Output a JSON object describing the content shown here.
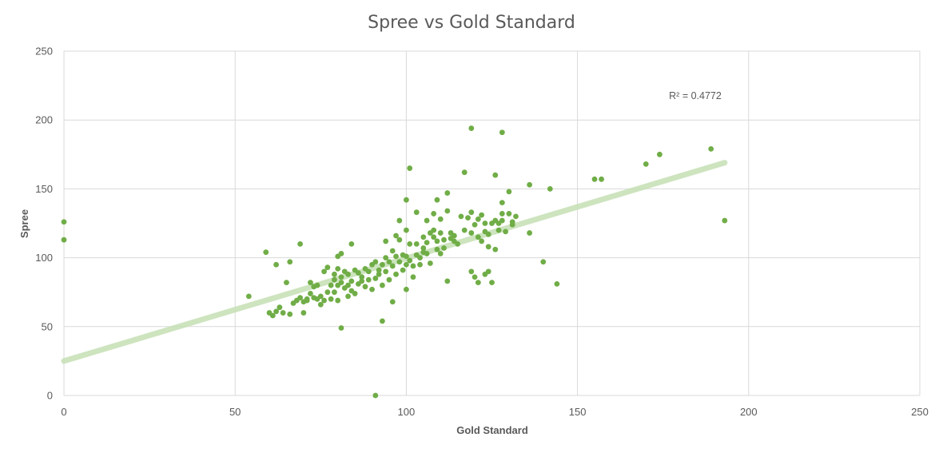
{
  "chart_data": {
    "type": "scatter",
    "title": "Spree vs Gold Standard",
    "xlabel": "Gold Standard",
    "ylabel": "Spree",
    "xlim": [
      0,
      250
    ],
    "ylim": [
      0,
      250
    ],
    "x_ticks": [
      "0",
      "50",
      "100",
      "150",
      "200",
      "250"
    ],
    "y_ticks": [
      "0",
      "50",
      "100",
      "150",
      "200",
      "250"
    ],
    "grid": true,
    "legend": "none",
    "trendline": {
      "type": "linear",
      "x_start": 0,
      "y_start": 25,
      "x_end": 193,
      "y_end": 169,
      "r2_label": "R² = 0.4772",
      "color": "#c5e0b4"
    },
    "marker_color": "#70ad47",
    "points": [
      [
        0,
        126
      ],
      [
        0,
        113
      ],
      [
        54,
        72
      ],
      [
        59,
        104
      ],
      [
        60,
        60
      ],
      [
        61,
        58
      ],
      [
        62,
        95
      ],
      [
        62,
        61
      ],
      [
        63,
        64
      ],
      [
        64,
        60
      ],
      [
        65,
        82
      ],
      [
        66,
        97
      ],
      [
        66,
        59
      ],
      [
        67,
        67
      ],
      [
        68,
        69
      ],
      [
        69,
        110
      ],
      [
        69,
        71
      ],
      [
        70,
        60
      ],
      [
        70,
        68
      ],
      [
        71,
        70
      ],
      [
        71,
        69
      ],
      [
        72,
        82
      ],
      [
        72,
        74
      ],
      [
        73,
        79
      ],
      [
        73,
        71
      ],
      [
        74,
        70
      ],
      [
        74,
        80
      ],
      [
        75,
        72
      ],
      [
        75,
        66
      ],
      [
        76,
        90
      ],
      [
        76,
        69
      ],
      [
        77,
        93
      ],
      [
        77,
        75
      ],
      [
        78,
        80
      ],
      [
        78,
        70
      ],
      [
        79,
        88
      ],
      [
        79,
        84
      ],
      [
        79,
        75
      ],
      [
        80,
        92
      ],
      [
        80,
        101
      ],
      [
        80,
        80
      ],
      [
        80,
        69
      ],
      [
        81,
        103
      ],
      [
        81,
        49
      ],
      [
        81,
        86
      ],
      [
        81,
        82
      ],
      [
        82,
        90
      ],
      [
        82,
        78
      ],
      [
        83,
        88
      ],
      [
        83,
        72
      ],
      [
        83,
        80
      ],
      [
        84,
        110
      ],
      [
        84,
        83
      ],
      [
        84,
        76
      ],
      [
        85,
        91
      ],
      [
        85,
        74
      ],
      [
        86,
        89
      ],
      [
        86,
        81
      ],
      [
        87,
        83
      ],
      [
        87,
        86
      ],
      [
        88,
        92
      ],
      [
        88,
        79
      ],
      [
        89,
        90
      ],
      [
        89,
        84
      ],
      [
        90,
        95
      ],
      [
        90,
        77
      ],
      [
        91,
        97
      ],
      [
        91,
        0
      ],
      [
        91,
        85
      ],
      [
        92,
        91
      ],
      [
        92,
        88
      ],
      [
        93,
        54
      ],
      [
        93,
        95
      ],
      [
        93,
        80
      ],
      [
        94,
        100
      ],
      [
        94,
        112
      ],
      [
        94,
        90
      ],
      [
        95,
        97
      ],
      [
        95,
        84
      ],
      [
        96,
        105
      ],
      [
        96,
        94
      ],
      [
        96,
        68
      ],
      [
        97,
        116
      ],
      [
        97,
        101
      ],
      [
        97,
        88
      ],
      [
        98,
        127
      ],
      [
        98,
        113
      ],
      [
        98,
        97
      ],
      [
        99,
        102
      ],
      [
        99,
        91
      ],
      [
        100,
        142
      ],
      [
        100,
        120
      ],
      [
        100,
        101
      ],
      [
        100,
        95
      ],
      [
        100,
        77
      ],
      [
        101,
        165
      ],
      [
        101,
        110
      ],
      [
        101,
        98
      ],
      [
        102,
        94
      ],
      [
        102,
        86
      ],
      [
        103,
        133
      ],
      [
        103,
        110
      ],
      [
        103,
        102
      ],
      [
        104,
        100
      ],
      [
        104,
        95
      ],
      [
        105,
        115
      ],
      [
        105,
        107
      ],
      [
        105,
        104
      ],
      [
        106,
        127
      ],
      [
        106,
        111
      ],
      [
        106,
        103
      ],
      [
        107,
        118
      ],
      [
        107,
        96
      ],
      [
        108,
        132
      ],
      [
        108,
        115
      ],
      [
        108,
        120
      ],
      [
        109,
        142
      ],
      [
        109,
        112
      ],
      [
        109,
        106
      ],
      [
        110,
        128
      ],
      [
        110,
        118
      ],
      [
        110,
        103
      ],
      [
        111,
        113
      ],
      [
        111,
        107
      ],
      [
        112,
        147
      ],
      [
        112,
        134
      ],
      [
        112,
        83
      ],
      [
        113,
        114
      ],
      [
        113,
        118
      ],
      [
        114,
        116
      ],
      [
        114,
        112
      ],
      [
        115,
        110
      ],
      [
        116,
        130
      ],
      [
        117,
        162
      ],
      [
        117,
        120
      ],
      [
        118,
        129
      ],
      [
        119,
        194
      ],
      [
        119,
        118
      ],
      [
        119,
        133
      ],
      [
        119,
        90
      ],
      [
        120,
        86
      ],
      [
        120,
        124
      ],
      [
        121,
        128
      ],
      [
        121,
        115
      ],
      [
        121,
        82
      ],
      [
        122,
        131
      ],
      [
        122,
        112
      ],
      [
        123,
        119
      ],
      [
        123,
        88
      ],
      [
        123,
        125
      ],
      [
        124,
        90
      ],
      [
        124,
        117
      ],
      [
        124,
        108
      ],
      [
        125,
        125
      ],
      [
        125,
        82
      ],
      [
        126,
        160
      ],
      [
        126,
        127
      ],
      [
        126,
        106
      ],
      [
        127,
        120
      ],
      [
        127,
        125
      ],
      [
        128,
        191
      ],
      [
        128,
        140
      ],
      [
        128,
        127
      ],
      [
        128,
        132
      ],
      [
        129,
        119
      ],
      [
        130,
        148
      ],
      [
        130,
        132
      ],
      [
        131,
        126
      ],
      [
        131,
        124
      ],
      [
        132,
        130
      ],
      [
        136,
        153
      ],
      [
        136,
        118
      ],
      [
        140,
        97
      ],
      [
        142,
        150
      ],
      [
        144,
        81
      ],
      [
        155,
        157
      ],
      [
        157,
        157
      ],
      [
        170,
        168
      ],
      [
        174,
        175
      ],
      [
        189,
        179
      ],
      [
        193,
        127
      ]
    ]
  }
}
